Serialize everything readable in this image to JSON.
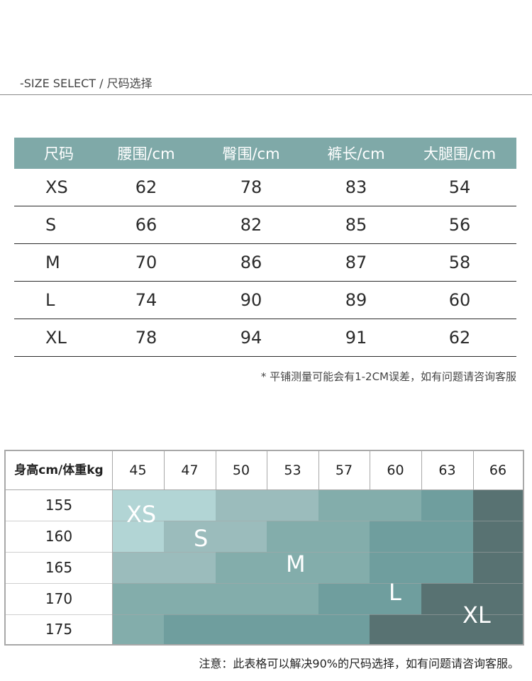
{
  "header": {
    "title": "-SIZE SELECT / 尺码选择"
  },
  "measure_table": {
    "columns": [
      "尺码",
      "腰围/cm",
      "臀围/cm",
      "裤长/cm",
      "大腿围/cm"
    ],
    "rows": [
      [
        "XS",
        "62",
        "78",
        "83",
        "54"
      ],
      [
        "S",
        "66",
        "82",
        "85",
        "56"
      ],
      [
        "M",
        "70",
        "86",
        "87",
        "58"
      ],
      [
        "L",
        "74",
        "90",
        "89",
        "60"
      ],
      [
        "XL",
        "78",
        "94",
        "91",
        "62"
      ]
    ],
    "note": "* 平铺测量可能会有1-2CM误差，如有问题请咨询客服"
  },
  "size_grid": {
    "corner": "身高cm/体重kg",
    "weights": [
      "45",
      "47",
      "50",
      "53",
      "57",
      "60",
      "63",
      "66"
    ],
    "heights": [
      "155",
      "160",
      "165",
      "170",
      "175"
    ],
    "size_labels": [
      "XS",
      "S",
      "M",
      "L",
      "XL"
    ],
    "colors": {
      "XS": "#b2d5d5",
      "S": "#9bbcbc",
      "M": "#83adab",
      "L": "#6f9e9e",
      "XL": "#587272"
    },
    "note": "注意：此表格可以解决90%的尺码选择，如有问题请咨询客服。"
  }
}
